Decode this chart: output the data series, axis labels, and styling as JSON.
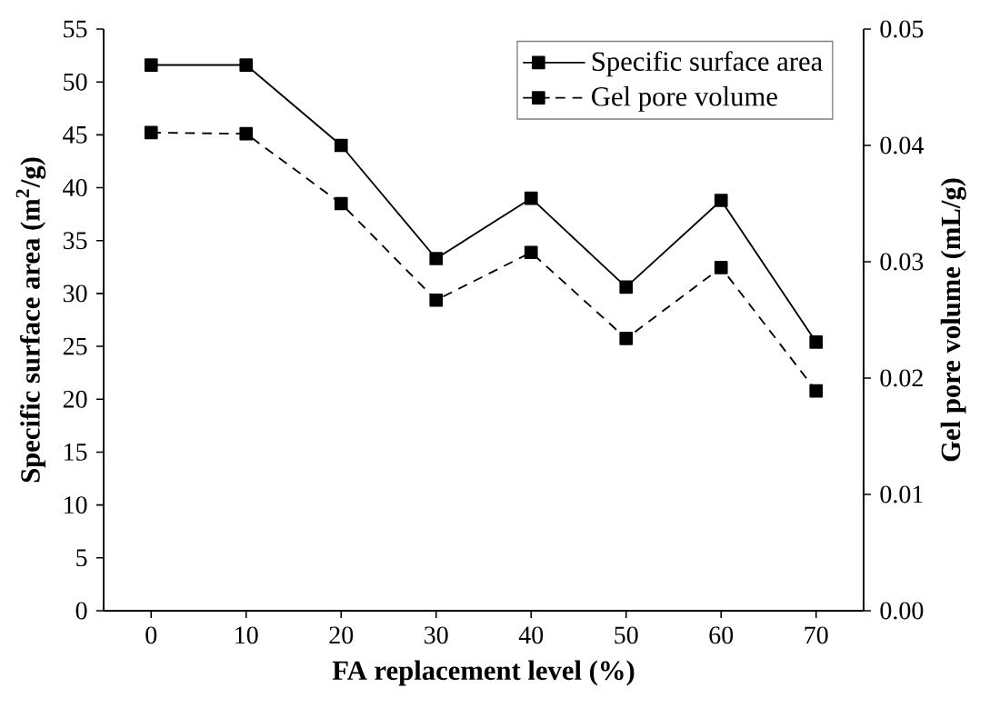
{
  "chart_data": {
    "type": "line",
    "xlabel": "FA replacement level (%)",
    "ylabel": "Specific surface area (m$^{2}$/g)",
    "y2label": "Gel pore volume (mL/g)",
    "x": [
      0,
      10,
      20,
      30,
      40,
      50,
      60,
      70
    ],
    "series": [
      {
        "name": "Specific surface area",
        "color": "#000000",
        "line_style": "solid",
        "values": [
          51.6,
          51.6,
          44.0,
          33.3,
          39.0,
          30.6,
          38.8,
          25.4
        ]
      },
      {
        "name": "Gel pore volume",
        "color": "#000000",
        "line_style": "dashed",
        "axis": "y2",
        "values": [
          0.0411,
          0.041,
          0.035,
          0.0267,
          0.0308,
          0.0234,
          0.0295,
          0.0189
        ]
      }
    ],
    "marker": "square",
    "legend": "top right",
    "xlim": [
      -5,
      75
    ],
    "xticks": [
      0,
      10,
      20,
      30,
      40,
      50,
      60,
      70
    ],
    "ylim": [
      0,
      55
    ],
    "yticks": [
      0,
      5,
      10,
      15,
      20,
      25,
      30,
      35,
      40,
      45,
      50,
      55
    ],
    "y2lim": [
      0,
      0.05
    ],
    "y2ticks": [
      {
        "value": 0,
        "label": "0.00"
      },
      {
        "value": 0.01,
        "label": "0.01"
      },
      {
        "value": 0.02,
        "label": "0.02"
      },
      {
        "value": 0.03,
        "label": "0.03"
      },
      {
        "value": 0.04,
        "label": "0.04"
      },
      {
        "value": 0.05,
        "label": "0.05"
      }
    ]
  }
}
